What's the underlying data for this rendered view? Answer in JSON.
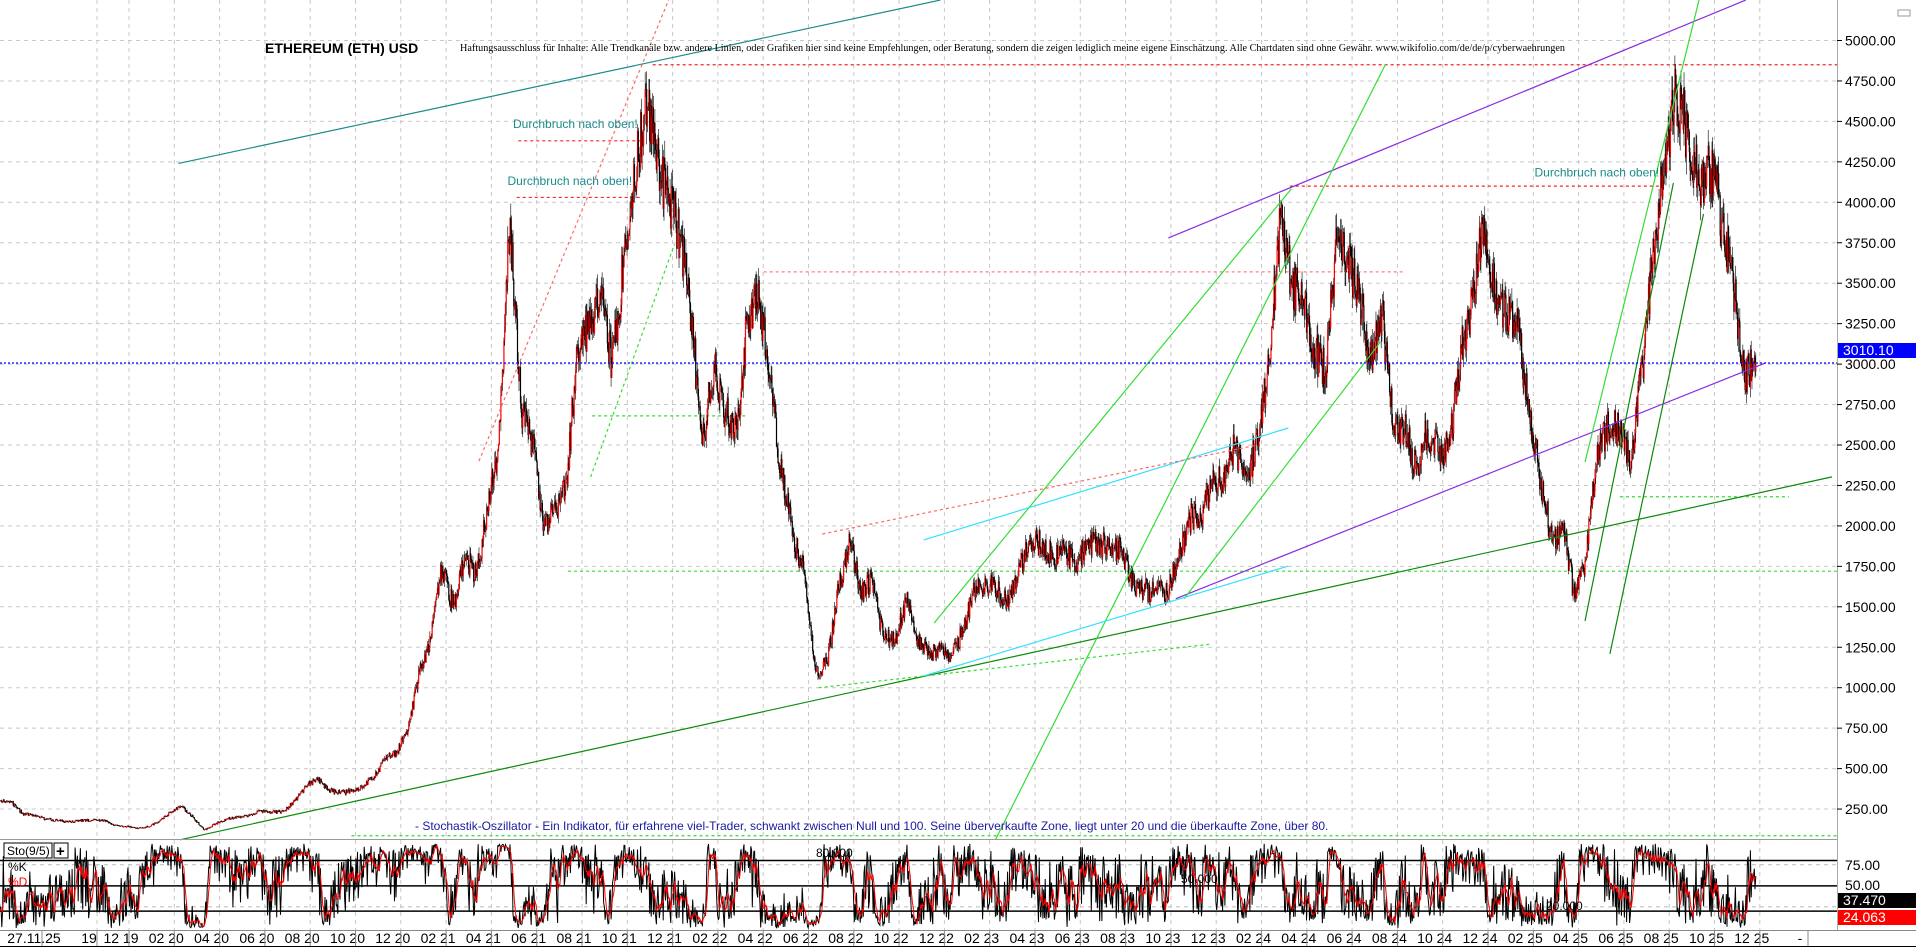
{
  "chart_data": {
    "type": "candlestick",
    "title": "ETHEREUM (ETH) USD",
    "disclaimer": "Haftungsausschluss für Inhalte: Alle Trendkanäle bzw. andere Linien, oder Grafiken hier sind keine Empfehlungen, oder Beratung, sondern die zeigen lediglich meine eigene Einschätzung. Alle Chartdaten sind ohne Gewähr.  www.wikifolio.com/de/de/p/cyberwaehrungen",
    "ylim": [
      0,
      5250
    ],
    "yticks": [
      "250.00",
      "500.00",
      "750.00",
      "1000.00",
      "1250.00",
      "1500.00",
      "1750.00",
      "2000.00",
      "2250.00",
      "2500.00",
      "2750.00",
      "3000.00",
      "3250.00",
      "3500.00",
      "3750.00",
      "4000.00",
      "4250.00",
      "4500.00",
      "4750.00",
      "5000.00"
    ],
    "last_price": 3010.1,
    "last_price_label": "3010.10",
    "grid": true,
    "xticks": [
      "27.11.25",
      "19",
      "12 19",
      "02 20",
      "04 20",
      "06 20",
      "08 20",
      "10 20",
      "12 20",
      "02 21",
      "04 21",
      "06 21",
      "08 21",
      "10 21",
      "12 21",
      "02 22",
      "04 22",
      "06 22",
      "08 22",
      "10 22",
      "12 22",
      "02 23",
      "04 23",
      "06 23",
      "08 23",
      "10 23",
      "12 23",
      "02 24",
      "04 24",
      "06 24",
      "08 24",
      "10 24",
      "12 24",
      "02 25",
      "04 25",
      "06 25",
      "08 25",
      "10 25",
      "12 25",
      "-"
    ],
    "semi_monthly_closes": [
      {
        "month": "2019-06",
        "closes": [
          320,
          300
        ]
      },
      {
        "month": "2019-07",
        "closes": [
          290,
          220
        ]
      },
      {
        "month": "2019-08",
        "closes": [
          210,
          190
        ]
      },
      {
        "month": "2019-09",
        "closes": [
          180,
          170
        ]
      },
      {
        "month": "2019-10",
        "closes": [
          180,
          180
        ]
      },
      {
        "month": "2019-11",
        "closes": [
          185,
          150
        ]
      },
      {
        "month": "2019-12",
        "closes": [
          145,
          130
        ]
      },
      {
        "month": "2020-01",
        "closes": [
          140,
          170
        ]
      },
      {
        "month": "2020-02",
        "closes": [
          230,
          265
        ]
      },
      {
        "month": "2020-03",
        "closes": [
          200,
          120
        ]
      },
      {
        "month": "2020-04",
        "closes": [
          160,
          190
        ]
      },
      {
        "month": "2020-05",
        "closes": [
          200,
          210
        ]
      },
      {
        "month": "2020-06",
        "closes": [
          240,
          230
        ]
      },
      {
        "month": "2020-07",
        "closes": [
          235,
          300
        ]
      },
      {
        "month": "2020-08",
        "closes": [
          390,
          440
        ]
      },
      {
        "month": "2020-09",
        "closes": [
          370,
          350
        ]
      },
      {
        "month": "2020-10",
        "closes": [
          360,
          390
        ]
      },
      {
        "month": "2020-11",
        "closes": [
          450,
          560
        ]
      },
      {
        "month": "2020-12",
        "closes": [
          600,
          740
        ]
      },
      {
        "month": "2021-01",
        "closes": [
          1100,
          1300
        ]
      },
      {
        "month": "2021-02",
        "closes": [
          1750,
          1500
        ]
      },
      {
        "month": "2021-03",
        "closes": [
          1800,
          1700
        ]
      },
      {
        "month": "2021-04",
        "closes": [
          2100,
          2500
        ]
      },
      {
        "month": "2021-05",
        "closes": [
          3900,
          2700
        ]
      },
      {
        "month": "2021-06",
        "closes": [
          2500,
          2000
        ]
      },
      {
        "month": "2021-07",
        "closes": [
          2100,
          2300
        ]
      },
      {
        "month": "2021-08",
        "closes": [
          3100,
          3200
        ]
      },
      {
        "month": "2021-09",
        "closes": [
          3400,
          3000
        ]
      },
      {
        "month": "2021-10",
        "closes": [
          3600,
          4100
        ]
      },
      {
        "month": "2021-11",
        "closes": [
          4700,
          4300
        ]
      },
      {
        "month": "2021-12",
        "closes": [
          4000,
          3800
        ]
      },
      {
        "month": "2022-01",
        "closes": [
          3300,
          2500
        ]
      },
      {
        "month": "2022-02",
        "closes": [
          3000,
          2700
        ]
      },
      {
        "month": "2022-03",
        "closes": [
          2600,
          3300
        ]
      },
      {
        "month": "2022-04",
        "closes": [
          3400,
          2900
        ]
      },
      {
        "month": "2022-05",
        "closes": [
          2300,
          1950
        ]
      },
      {
        "month": "2022-06",
        "closes": [
          1700,
          1100
        ]
      },
      {
        "month": "2022-07",
        "closes": [
          1150,
          1600
        ]
      },
      {
        "month": "2022-08",
        "closes": [
          1900,
          1600
        ]
      },
      {
        "month": "2022-09",
        "closes": [
          1650,
          1300
        ]
      },
      {
        "month": "2022-10",
        "closes": [
          1300,
          1550
        ]
      },
      {
        "month": "2022-11",
        "closes": [
          1300,
          1200
        ]
      },
      {
        "month": "2022-12",
        "closes": [
          1250,
          1200
        ]
      },
      {
        "month": "2023-01",
        "closes": [
          1350,
          1600
        ]
      },
      {
        "month": "2023-02",
        "closes": [
          1650,
          1600
        ]
      },
      {
        "month": "2023-03",
        "closes": [
          1500,
          1750
        ]
      },
      {
        "month": "2023-04",
        "closes": [
          1900,
          1900
        ]
      },
      {
        "month": "2023-05",
        "closes": [
          1800,
          1850
        ]
      },
      {
        "month": "2023-06",
        "closes": [
          1750,
          1900
        ]
      },
      {
        "month": "2023-07",
        "closes": [
          1900,
          1850
        ]
      },
      {
        "month": "2023-08",
        "closes": [
          1850,
          1650
        ]
      },
      {
        "month": "2023-09",
        "closes": [
          1600,
          1600
        ]
      },
      {
        "month": "2023-10",
        "closes": [
          1580,
          1800
        ]
      },
      {
        "month": "2023-11",
        "closes": [
          2050,
          2050
        ]
      },
      {
        "month": "2023-12",
        "closes": [
          2250,
          2300
        ]
      },
      {
        "month": "2024-01",
        "closes": [
          2500,
          2300
        ]
      },
      {
        "month": "2024-02",
        "closes": [
          2500,
          3000
        ]
      },
      {
        "month": "2024-03",
        "closes": [
          3900,
          3500
        ]
      },
      {
        "month": "2024-04",
        "closes": [
          3400,
          3100
        ]
      },
      {
        "month": "2024-05",
        "closes": [
          2950,
          3750
        ]
      },
      {
        "month": "2024-06",
        "closes": [
          3650,
          3400
        ]
      },
      {
        "month": "2024-07",
        "closes": [
          3000,
          3300
        ]
      },
      {
        "month": "2024-08",
        "closes": [
          2600,
          2600
        ]
      },
      {
        "month": "2024-09",
        "closes": [
          2350,
          2600
        ]
      },
      {
        "month": "2024-10",
        "closes": [
          2450,
          2500
        ]
      },
      {
        "month": "2024-11",
        "closes": [
          3100,
          3400
        ]
      },
      {
        "month": "2024-12",
        "closes": [
          3900,
          3400
        ]
      },
      {
        "month": "2025-01",
        "closes": [
          3300,
          3200
        ]
      },
      {
        "month": "2025-02",
        "closes": [
          2700,
          2300
        ]
      },
      {
        "month": "2025-03",
        "closes": [
          1900,
          2000
        ]
      },
      {
        "month": "2025-04",
        "closes": [
          1550,
          1800
        ]
      },
      {
        "month": "2025-05",
        "closes": [
          2500,
          2600
        ]
      },
      {
        "month": "2025-06",
        "closes": [
          2600,
          2400
        ]
      },
      {
        "month": "2025-07",
        "closes": [
          3000,
          3700
        ]
      },
      {
        "month": "2025-08",
        "closes": [
          4300,
          4700
        ]
      },
      {
        "month": "2025-09",
        "closes": [
          4400,
          4100
        ]
      },
      {
        "month": "2025-10",
        "closes": [
          4200,
          3900
        ]
      },
      {
        "month": "2025-11",
        "closes": [
          3500,
          2900
        ]
      },
      {
        "month": "2025-12",
        "closes": [
          3010
        ]
      }
    ],
    "trend_lines": [
      {
        "color": "#1b8a8a",
        "dash": false,
        "from": [
          "2020-02-12",
          4240
        ],
        "to": [
          "2022-12-01",
          5250
        ]
      },
      {
        "color": "#8a2be2",
        "dash": false,
        "from": [
          "2023-10-03",
          3780
        ],
        "to": [
          "2025-11-18",
          5250
        ]
      },
      {
        "color": "#8a2be2",
        "dash": false,
        "from": [
          "2023-10-13",
          1550
        ],
        "to": [
          "2025-12-14",
          3007
        ]
      },
      {
        "color": "#0a8a0a",
        "dash": false,
        "from": [
          "2020-02-14",
          60
        ],
        "to": [
          "2026-03-12",
          2303
        ]
      },
      {
        "color": "#33dd33",
        "dash": false,
        "from": [
          "2023-02-14",
          60
        ],
        "to": [
          "2024-07-21",
          4855
        ]
      },
      {
        "color": "#33dd33",
        "dash": false,
        "from": [
          "2023-10-24",
          1550
        ],
        "to": [
          "2024-07-14",
          3137
        ]
      },
      {
        "color": "#33dd33",
        "dash": false,
        "from": [
          "2022-11-23",
          1400
        ],
        "to": [
          "2024-03-16",
          4083
        ]
      },
      {
        "color": "#33e0ff",
        "dash": false,
        "from": [
          "2022-11-09",
          1913
        ],
        "to": [
          "2024-03-12",
          2605
        ]
      },
      {
        "color": "#33e0ff",
        "dash": false,
        "from": [
          "2022-11-09",
          1073
        ],
        "to": [
          "2024-03-12",
          1752
        ]
      },
      {
        "color": "#33dd33",
        "dash": true,
        "from": [
          "2021-08-18",
          2303
        ],
        "to": [
          "2021-12-09",
          3742
        ]
      },
      {
        "color": "#33dd33",
        "dash": true,
        "from": [
          "2022-06-20",
          1000
        ],
        "to": [
          "2023-12-01",
          1270
        ]
      },
      {
        "color": "#0a8a0a",
        "dash": false,
        "from": [
          "2025-04-15",
          1412
        ],
        "to": [
          "2025-08-12",
          4119
        ]
      },
      {
        "color": "#0a8a0a",
        "dash": false,
        "from": [
          "2025-05-18",
          1209
        ],
        "to": [
          "2025-09-22",
          3928
        ]
      },
      {
        "color": "#33dd33",
        "dash": false,
        "from": [
          "2025-04-15",
          2395
        ],
        "to": [
          "2025-09-16",
          5250
        ]
      },
      {
        "color": "#ff6666",
        "dash": true,
        "from": [
          "2021-03-20",
          2400
        ],
        "to": [
          "2021-12-01",
          5250
        ]
      },
      {
        "color": "#ff6666",
        "dash": true,
        "from": [
          "2022-06-25",
          1950
        ],
        "to": [
          "2024-02-01",
          2500
        ]
      }
    ],
    "horizontal_levels": [
      {
        "color": "#ff2020",
        "price": 4850,
        "from": "2021-11-10",
        "to": "2026-03-31"
      },
      {
        "color": "#ff2020",
        "price": 4100,
        "from": "2024-03-14",
        "to": "2025-07-27"
      },
      {
        "color": "#ff2020",
        "price": 4380,
        "from": "2021-05-12",
        "to": "2021-10-24"
      },
      {
        "color": "#ff2020",
        "price": 4030,
        "from": "2021-05-10",
        "to": "2021-10-24"
      },
      {
        "color": "#ff8080",
        "price": 3570,
        "from": "2022-04-07",
        "to": "2024-08-15"
      },
      {
        "color": "#33dd33",
        "price": 1720,
        "from": "2021-07-18",
        "to": "2026-03-31"
      },
      {
        "color": "#33dd33",
        "price": 2680,
        "from": "2021-08-20",
        "to": "2022-03-14"
      },
      {
        "color": "#33dd33",
        "price": 2180,
        "from": "2025-06-01",
        "to": "2026-01-15"
      },
      {
        "color": "#33dd33",
        "price": 85,
        "from": "2020-10-01",
        "to": "2026-03-31"
      }
    ],
    "annotations": [
      {
        "text": "Durchbruch nach oben!",
        "date": "2021-05-05",
        "price": 4460
      },
      {
        "text": "Durchbruch nach oben!",
        "date": "2021-04-28",
        "price": 4107
      },
      {
        "text": "Durchbruch nach oben!",
        "date": "2025-02-08",
        "price": 4160
      }
    ],
    "indicator": {
      "name": "Sto(9/5)",
      "k_label": "%K",
      "d_label": "%D",
      "k_color": "#000000",
      "d_color": "#ff0000",
      "levels": [
        80,
        50,
        20
      ],
      "level_labels": [
        "80.000",
        "50.000",
        "20.000"
      ],
      "yticks": [
        "75.00",
        "50.00"
      ],
      "k_value": "37.470",
      "d_value": "24.063",
      "description": "- Stochastik-Oszillator - Ein Indikator, für erfahrene viel-Trader, schwankt zwischen Null und 100. Seine überverkaufte Zone, liegt unter 20 und die überkaufte Zone, über 80."
    },
    "colors": {
      "up": "#ff0000",
      "down": "#000000",
      "last_price": "#0000ff"
    }
  }
}
